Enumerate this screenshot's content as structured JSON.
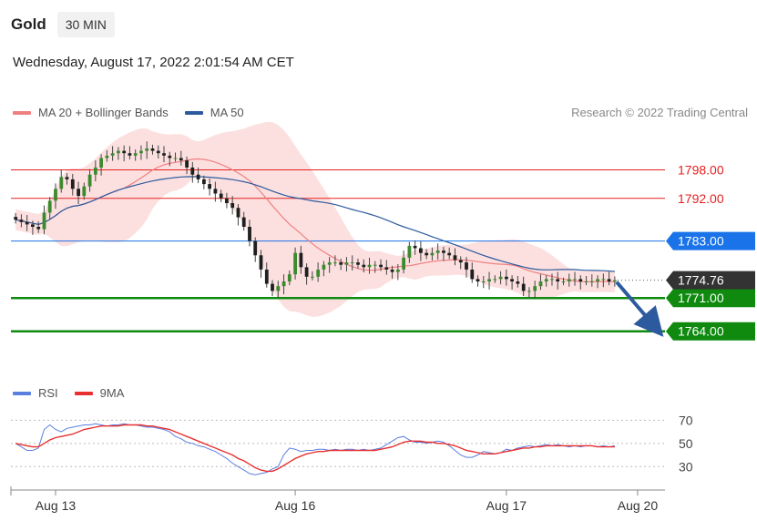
{
  "header": {
    "symbol": "Gold",
    "interval": "30 MIN"
  },
  "timestamp": "Wednesday, August 17, 2022 2:01:54 AM CET",
  "legend": {
    "ma20": {
      "label": "MA 20 + Bollinger Bands",
      "color": "#f08080"
    },
    "ma50": {
      "label": "MA 50",
      "color": "#2d5a9e"
    }
  },
  "credit": "Research © 2022 Trading Central",
  "rsi_legend": {
    "rsi": {
      "label": "RSI",
      "color": "#5b7fe0"
    },
    "ma9": {
      "label": "9MA",
      "color": "#e83030"
    }
  },
  "chart_data": [
    {
      "type": "candlestick",
      "title": "",
      "price_range": [
        1758,
        1805
      ],
      "current_price": {
        "value": 1774.76,
        "label": "1774.76",
        "color": "#333333"
      },
      "levels": [
        {
          "value": 1798.0,
          "label": "1798.00",
          "style": "text",
          "color": "#e62020"
        },
        {
          "value": 1792.0,
          "label": "1792.00",
          "style": "text",
          "color": "#e62020"
        },
        {
          "value": 1783.0,
          "label": "1783.00",
          "style": "tag",
          "color": "#1a73e8"
        },
        {
          "value": 1771.0,
          "label": "1771.00",
          "style": "tag",
          "color": "#0f8a0f"
        },
        {
          "value": 1764.0,
          "label": "1764.00",
          "style": "tag",
          "color": "#0f8a0f"
        }
      ],
      "x_ticks": [
        "Aug 13",
        "Aug 16",
        "Aug 17",
        "Aug 20"
      ],
      "x_tick_positions": [
        7,
        49,
        86,
        109
      ],
      "bars_count": 106,
      "forecast_target": 1764.0,
      "closes": [
        1787.5,
        1787.0,
        1786.5,
        1786.0,
        1785.5,
        1789.0,
        1791.5,
        1794.0,
        1796.5,
        1796.0,
        1794.0,
        1792.5,
        1794.5,
        1797.0,
        1798.5,
        1800.5,
        1801.0,
        1801.5,
        1802.0,
        1801.5,
        1801.0,
        1801.5,
        1802.0,
        1802.5,
        1802.0,
        1801.5,
        1801.0,
        1800.5,
        1800.5,
        1800.0,
        1798.5,
        1797.0,
        1796.0,
        1795.0,
        1794.0,
        1793.0,
        1792.0,
        1791.0,
        1790.0,
        1788.0,
        1786.0,
        1783.0,
        1780.0,
        1777.0,
        1774.0,
        1772.5,
        1773.5,
        1774.5,
        1776.0,
        1780.5,
        1777.5,
        1775.5,
        1775.5,
        1777.0,
        1778.0,
        1778.5,
        1778.5,
        1778.0,
        1778.5,
        1778.5,
        1778.0,
        1777.5,
        1778.0,
        1778.0,
        1777.5,
        1777.0,
        1776.5,
        1777.0,
        1779.5,
        1782.0,
        1781.5,
        1780.5,
        1780.0,
        1780.5,
        1781.0,
        1780.5,
        1780.0,
        1779.0,
        1778.5,
        1777.0,
        1775.0,
        1774.5,
        1774.5,
        1775.0,
        1775.0,
        1775.5,
        1775.0,
        1774.5,
        1774.0,
        1772.5,
        1772.5,
        1773.5,
        1774.5,
        1775.0,
        1775.0,
        1774.5,
        1774.5,
        1775.0,
        1775.0,
        1774.5,
        1774.5,
        1774.5,
        1775.0,
        1775.0,
        1774.5,
        1774.76
      ]
    },
    {
      "type": "line",
      "title": "",
      "ylim": [
        20,
        75
      ],
      "y_ticks": [
        70,
        50,
        30
      ],
      "series": [
        {
          "name": "RSI",
          "color": "#5b7fe0",
          "values": [
            50,
            47,
            44,
            44,
            46,
            62,
            66,
            62,
            60,
            63,
            64,
            65,
            66,
            66,
            67,
            66,
            65,
            66,
            66,
            67,
            66,
            66,
            65,
            64,
            64,
            63,
            62,
            60,
            56,
            54,
            51,
            50,
            48,
            47,
            45,
            43,
            40,
            37,
            33,
            30,
            27,
            24,
            23,
            24,
            25,
            28,
            30,
            40,
            46,
            45,
            43,
            44,
            44,
            45,
            45,
            44,
            45,
            44,
            45,
            45,
            44,
            45,
            44,
            45,
            46,
            49,
            52,
            55,
            56,
            53,
            51,
            51,
            50,
            51,
            52,
            51,
            48,
            44,
            40,
            38,
            38,
            40,
            43,
            42,
            41,
            42,
            45,
            44,
            46,
            47,
            48,
            47,
            48,
            49,
            48,
            49,
            48,
            47,
            48,
            47,
            48,
            48,
            47,
            48,
            47,
            48
          ]
        },
        {
          "name": "9MA",
          "color": "#e83030",
          "values": [
            50,
            49,
            48,
            47,
            47,
            50,
            53,
            55,
            56,
            57,
            58,
            60,
            62,
            63,
            64,
            65,
            65,
            65,
            65,
            66,
            66,
            66,
            66,
            65,
            65,
            64,
            63,
            62,
            60,
            58,
            56,
            54,
            52,
            50,
            48,
            46,
            44,
            42,
            40,
            37,
            35,
            32,
            29,
            27,
            26,
            26,
            28,
            31,
            34,
            37,
            39,
            41,
            42,
            43,
            43,
            44,
            44,
            44,
            44,
            44,
            44,
            44,
            44,
            44,
            45,
            46,
            47,
            49,
            51,
            52,
            52,
            52,
            51,
            51,
            50,
            50,
            49,
            48,
            46,
            44,
            43,
            42,
            41,
            41,
            41,
            42,
            43,
            44,
            45,
            46,
            46,
            47,
            47,
            48,
            48,
            48,
            48,
            48,
            48,
            48,
            48,
            48,
            47,
            47,
            47,
            47
          ]
        }
      ]
    }
  ]
}
